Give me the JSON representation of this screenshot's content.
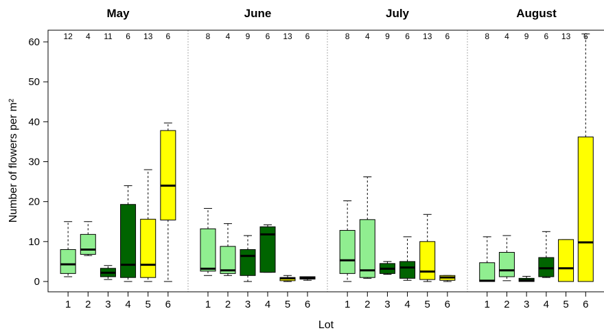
{
  "chart_data": {
    "type": "box",
    "ylabel": "Number of flowers per m²",
    "xlabel": "Lot",
    "ylim": [
      -2.5,
      64
    ],
    "yticks": [
      0,
      10,
      20,
      30,
      40,
      50,
      60
    ],
    "categories": [
      "1",
      "2",
      "3",
      "4",
      "5",
      "6"
    ],
    "lot_colors": [
      "#90EE90",
      "#90EE90",
      "#006400",
      "#006400",
      "#FFFF00",
      "#FFFF00"
    ],
    "panels": [
      {
        "title": "May",
        "n": [
          "12",
          "4",
          "11",
          "6",
          "13",
          "6"
        ],
        "boxes": [
          {
            "lot": "1",
            "min": 1.2,
            "q1": 2,
            "median": 4.3,
            "q3": 8,
            "max": 15
          },
          {
            "lot": "2",
            "min": 6.5,
            "q1": 6.8,
            "median": 8,
            "q3": 11.8,
            "max": 15
          },
          {
            "lot": "3",
            "min": 0.5,
            "q1": 1.2,
            "median": 2.2,
            "q3": 3.3,
            "max": 4
          },
          {
            "lot": "4",
            "min": 0,
            "q1": 1,
            "median": 4.2,
            "q3": 19.3,
            "max": 24
          },
          {
            "lot": "5",
            "min": 0,
            "q1": 1,
            "median": 4.2,
            "q3": 15.6,
            "max": 28
          },
          {
            "lot": "6",
            "min": 0,
            "q1": 15.4,
            "median": 24,
            "q3": 37.8,
            "max": 39.7
          }
        ]
      },
      {
        "title": "June",
        "n": [
          "8",
          "4",
          "9",
          "6",
          "13",
          "6"
        ],
        "boxes": [
          {
            "lot": "1",
            "min": 1.5,
            "q1": 2.6,
            "median": 3.2,
            "q3": 13.2,
            "max": 18.3
          },
          {
            "lot": "2",
            "min": 1.5,
            "q1": 2,
            "median": 2.8,
            "q3": 8.8,
            "max": 14.5
          },
          {
            "lot": "3",
            "min": 0,
            "q1": 1.5,
            "median": 6.4,
            "q3": 8,
            "max": 11.5
          },
          {
            "lot": "4",
            "min": 2.3,
            "q1": 2.3,
            "median": 11.8,
            "q3": 13.7,
            "max": 14.2
          },
          {
            "lot": "5",
            "min": 0,
            "q1": 0.2,
            "median": 0.8,
            "q3": 1,
            "max": 1.5
          },
          {
            "lot": "6",
            "min": 0.3,
            "q1": 0.6,
            "median": 0.9,
            "q3": 1.2,
            "max": 1.2
          }
        ]
      },
      {
        "title": "July",
        "n": [
          "8",
          "4",
          "9",
          "6",
          "13",
          "6"
        ],
        "boxes": [
          {
            "lot": "1",
            "min": 0,
            "q1": 2,
            "median": 5.3,
            "q3": 12.8,
            "max": 20.2
          },
          {
            "lot": "2",
            "min": 0.8,
            "q1": 1,
            "median": 2.8,
            "q3": 15.5,
            "max": 26.2
          },
          {
            "lot": "3",
            "min": 1.8,
            "q1": 2,
            "median": 3.2,
            "q3": 4.5,
            "max": 5
          },
          {
            "lot": "4",
            "min": 0.3,
            "q1": 0.8,
            "median": 3.5,
            "q3": 5,
            "max": 11.2
          },
          {
            "lot": "5",
            "min": 0,
            "q1": 0.5,
            "median": 2.5,
            "q3": 10,
            "max": 16.8
          },
          {
            "lot": "6",
            "min": 0,
            "q1": 0.3,
            "median": 1,
            "q3": 1.5,
            "max": 1.5
          }
        ]
      },
      {
        "title": "August",
        "n": [
          "8",
          "4",
          "9",
          "6",
          "13",
          "6"
        ],
        "boxes": [
          {
            "lot": "1",
            "min": 0,
            "q1": 0,
            "median": 0.2,
            "q3": 4.7,
            "max": 11.2
          },
          {
            "lot": "2",
            "min": 0.2,
            "q1": 1.2,
            "median": 2.8,
            "q3": 7.3,
            "max": 11.5
          },
          {
            "lot": "3",
            "min": 0,
            "q1": 0,
            "median": 0.3,
            "q3": 0.8,
            "max": 1.3
          },
          {
            "lot": "4",
            "min": 1,
            "q1": 1.2,
            "median": 3.3,
            "q3": 6,
            "max": 12.5
          },
          {
            "lot": "5",
            "min": 0,
            "q1": 0,
            "median": 3.3,
            "q3": 10.5,
            "max": 10.5
          },
          {
            "lot": "6",
            "min": 0,
            "q1": 0,
            "median": 9.8,
            "q3": 36.2,
            "max": 62
          }
        ]
      }
    ]
  }
}
